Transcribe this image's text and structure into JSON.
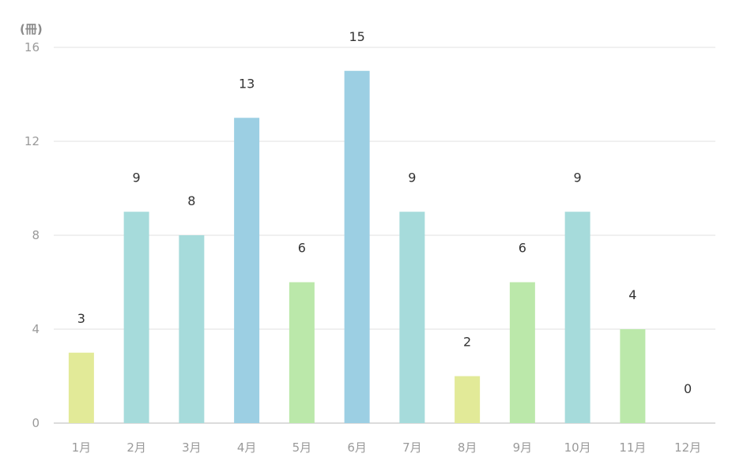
{
  "chart_data": {
    "type": "bar",
    "unit_label": "(冊)",
    "categories": [
      "1月",
      "2月",
      "3月",
      "4月",
      "5月",
      "6月",
      "7月",
      "8月",
      "9月",
      "10月",
      "11月",
      "12月"
    ],
    "values": [
      3,
      9,
      8,
      13,
      6,
      15,
      9,
      2,
      6,
      9,
      4,
      0
    ],
    "ylim": [
      0,
      16
    ],
    "yticks": [
      0,
      4,
      8,
      12,
      16
    ],
    "grid": true,
    "legend": "none",
    "colors": {
      "low": "#e2ea98",
      "mid_low": "#bbe8aa",
      "mid": "#a6dbdb",
      "high": "#9ccfe3",
      "grid": "#e2e2e2",
      "axis": "#dcdcdc"
    }
  }
}
